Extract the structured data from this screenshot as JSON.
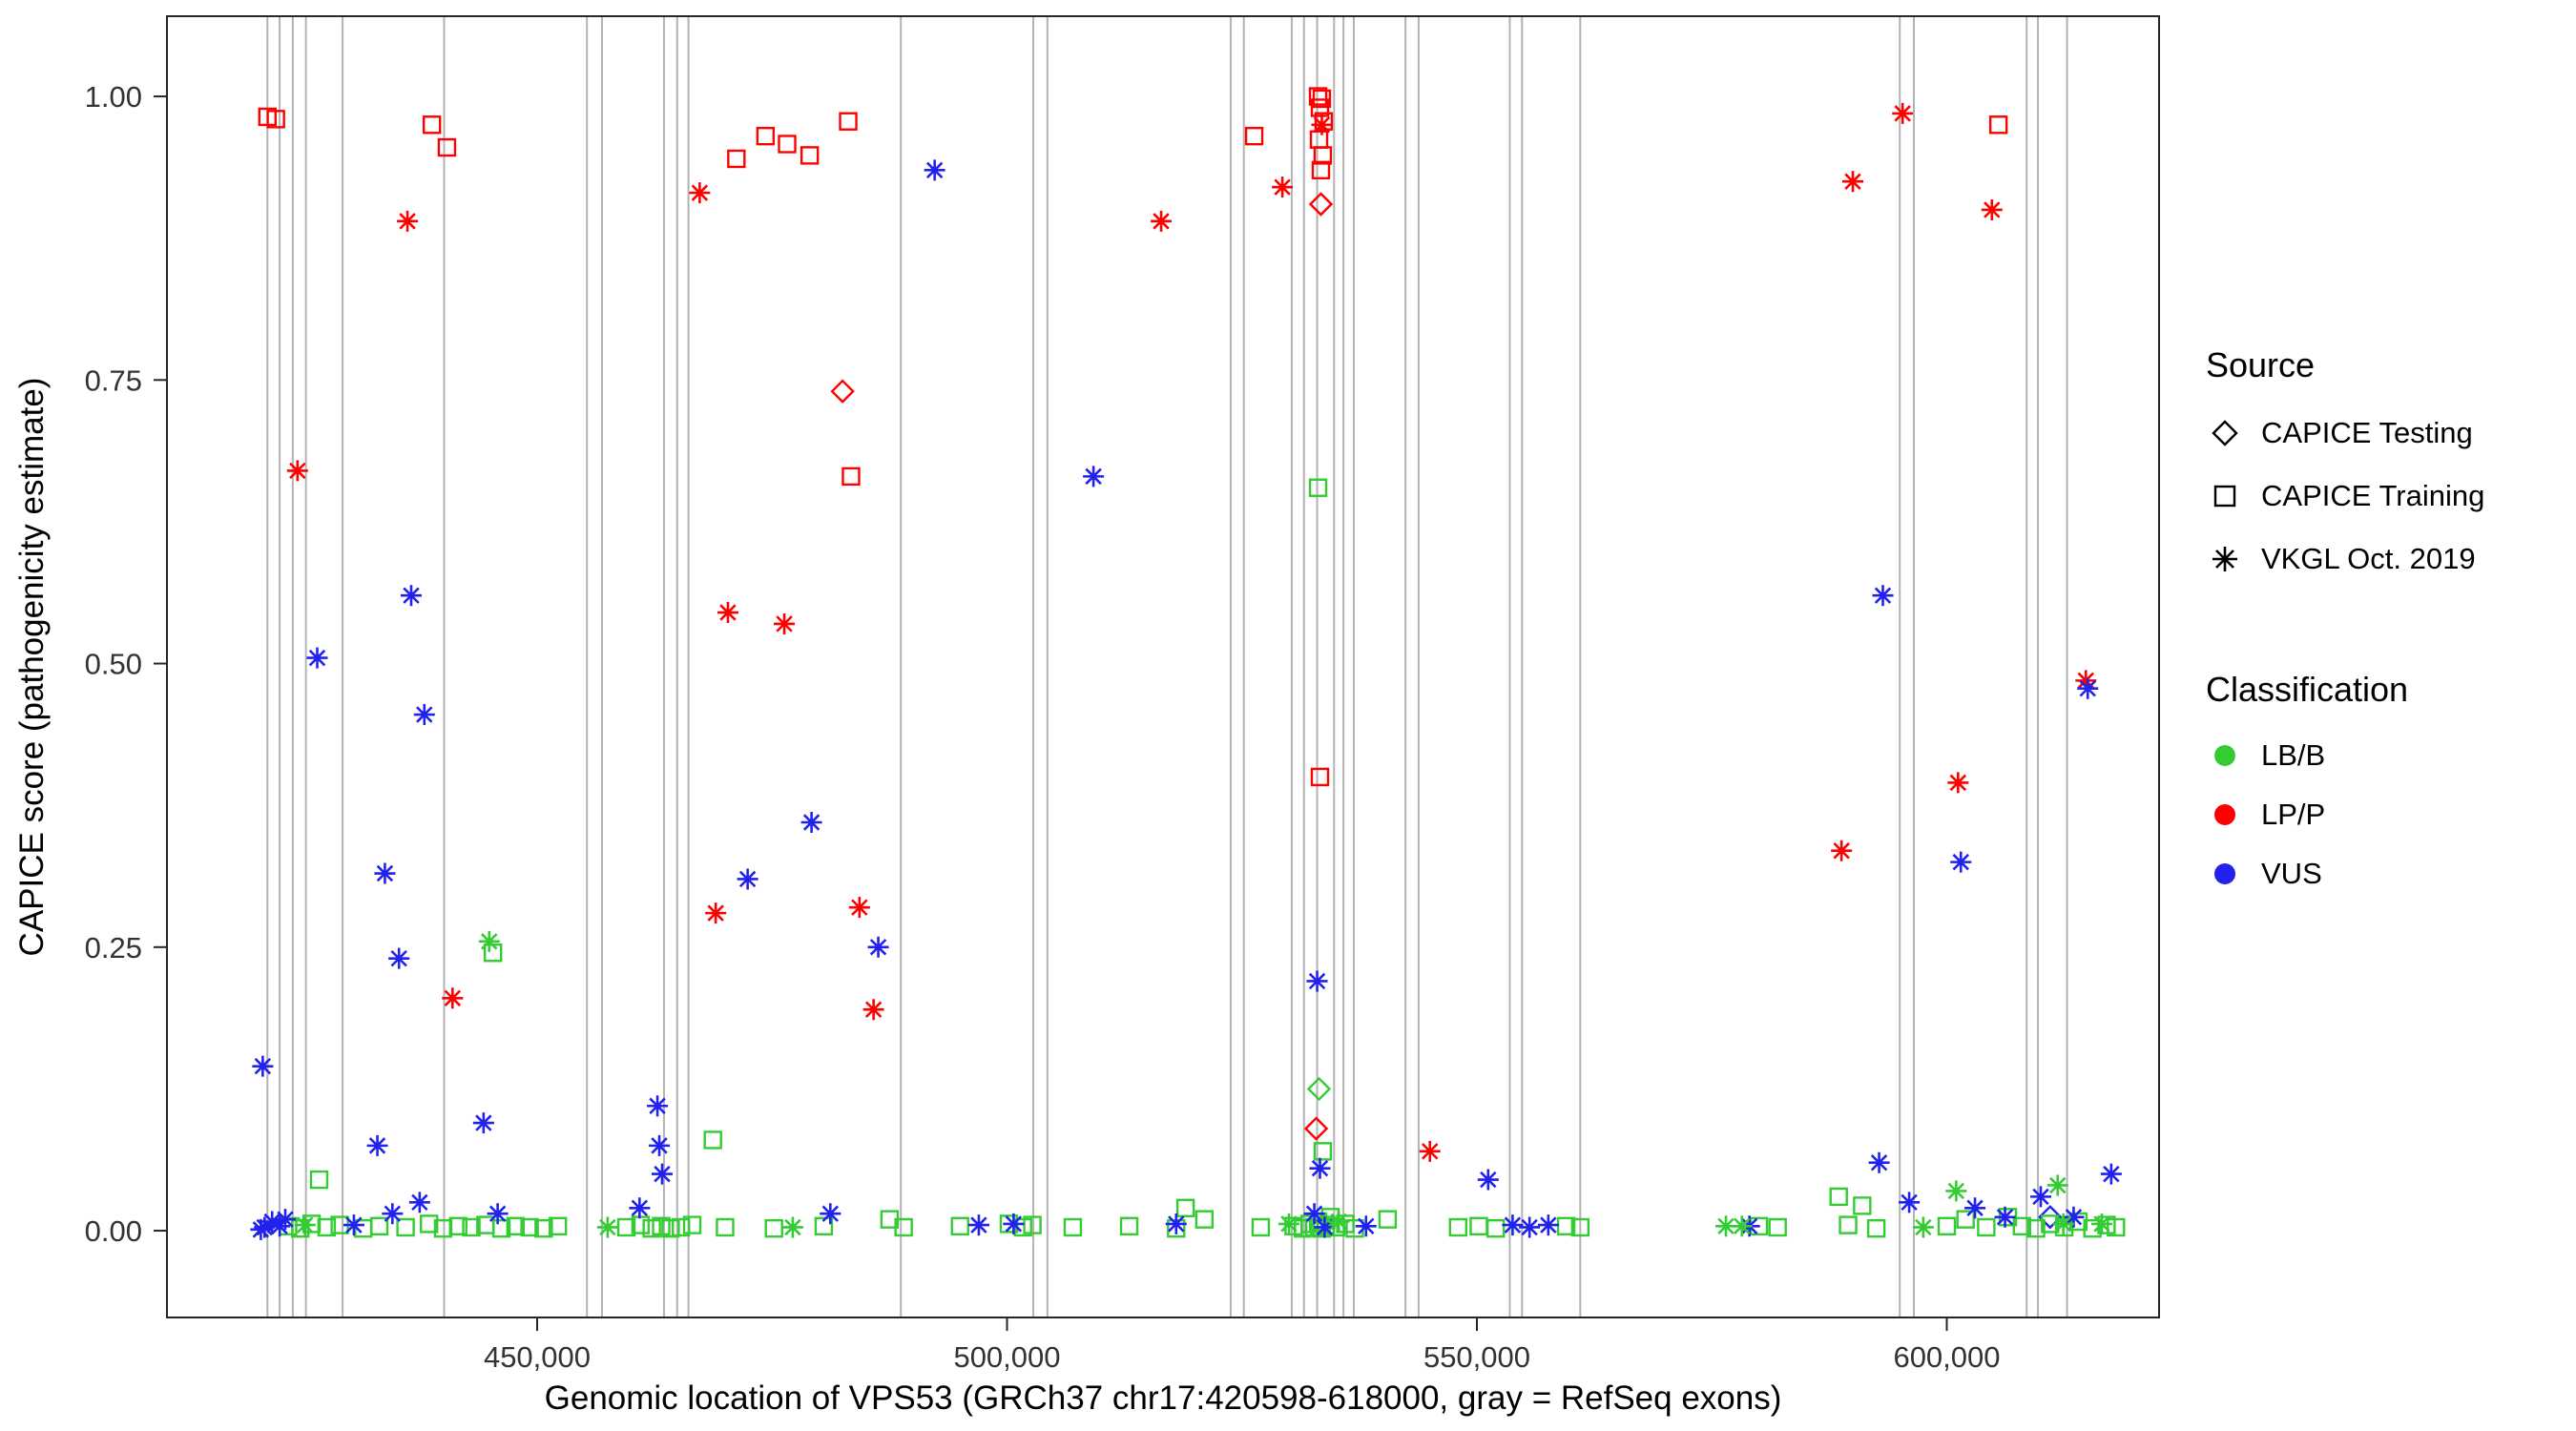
{
  "legend": {
    "source_title": "Source",
    "source_items": [
      {
        "label": "CAPICE Testing",
        "shape": "diamond"
      },
      {
        "label": "CAPICE Training",
        "shape": "square"
      },
      {
        "label": "VKGL Oct. 2019",
        "shape": "asterisk"
      }
    ],
    "classification_title": "Classification",
    "classification_items": [
      {
        "label": "LB/B",
        "color": "#33CC33"
      },
      {
        "label": "LP/P",
        "color": "#FF0000"
      },
      {
        "label": "VUS",
        "color": "#2222EE"
      }
    ]
  },
  "chart_data": {
    "type": "scatter",
    "title": "",
    "xlabel": "Genomic location of VPS53 (GRCh37 chr17:420598-618000, gray = RefSeq exons)",
    "ylabel": "CAPICE score (pathogenicity estimate)",
    "xlim": [
      410610,
      622590
    ],
    "ylim": [
      -0.0765,
      1.0707
    ],
    "grid": "off",
    "legend_position": "right",
    "xticks": [
      {
        "v": 450000,
        "label": "450,000"
      },
      {
        "v": 500000,
        "label": "500,000"
      },
      {
        "v": 550000,
        "label": "550,000"
      },
      {
        "v": 600000,
        "label": "600,000"
      }
    ],
    "yticks": [
      {
        "v": 0.0,
        "label": "0.00"
      },
      {
        "v": 0.25,
        "label": "0.25"
      },
      {
        "v": 0.5,
        "label": "0.50"
      },
      {
        "v": 0.75,
        "label": "0.75"
      },
      {
        "v": 1.0,
        "label": "1.00"
      }
    ],
    "exon_line_color": "#B3B3B3",
    "exon_lines_x": [
      421300,
      422600,
      424000,
      425400,
      429300,
      440100,
      455300,
      456900,
      463500,
      464900,
      466100,
      488700,
      502800,
      504300,
      523800,
      525200,
      530300,
      531600,
      533000,
      534800,
      535800,
      536900,
      542400,
      543800,
      553500,
      554800,
      561000,
      595000,
      596500,
      608500,
      609700,
      612800
    ],
    "classification_colors": {
      "LB/B": "#33CC33",
      "LP/P": "#FF0000",
      "VUS": "#2222EE"
    },
    "series": [
      {
        "name": "CAPICE Testing",
        "shape": "diamond",
        "points": [
          [
            482500,
            0.74,
            "LP/P"
          ],
          [
            533400,
            0.905,
            "LP/P"
          ],
          [
            533200,
            0.125,
            "LB/B"
          ],
          [
            532900,
            0.09,
            "LP/P"
          ],
          [
            533600,
            0.005,
            "LB/B"
          ],
          [
            611000,
            0.012,
            "VUS"
          ]
        ]
      },
      {
        "name": "CAPICE Training",
        "shape": "square",
        "points": [
          [
            421300,
            0.982,
            "LP/P"
          ],
          [
            422200,
            0.98,
            "LP/P"
          ],
          [
            438800,
            0.975,
            "LP/P"
          ],
          [
            440400,
            0.955,
            "LP/P"
          ],
          [
            471200,
            0.945,
            "LP/P"
          ],
          [
            474300,
            0.965,
            "LP/P"
          ],
          [
            476600,
            0.958,
            "LP/P"
          ],
          [
            479000,
            0.948,
            "LP/P"
          ],
          [
            483100,
            0.978,
            "LP/P"
          ],
          [
            483400,
            0.665,
            "LP/P"
          ],
          [
            526300,
            0.965,
            "LP/P"
          ],
          [
            533100,
            1.0,
            "LP/P"
          ],
          [
            533500,
            0.998,
            "LP/P"
          ],
          [
            533300,
            0.99,
            "LP/P"
          ],
          [
            533700,
            0.978,
            "LP/P"
          ],
          [
            533200,
            0.962,
            "LP/P"
          ],
          [
            533600,
            0.948,
            "LP/P"
          ],
          [
            533400,
            0.935,
            "LP/P"
          ],
          [
            533300,
            0.4,
            "LP/P"
          ],
          [
            605500,
            0.975,
            "LP/P"
          ],
          [
            426800,
            0.045,
            "LB/B"
          ],
          [
            445300,
            0.245,
            "LB/B"
          ],
          [
            468700,
            0.08,
            "LB/B"
          ],
          [
            519000,
            0.02,
            "LB/B"
          ],
          [
            533100,
            0.655,
            "LB/B"
          ],
          [
            533600,
            0.07,
            "LB/B"
          ],
          [
            588500,
            0.03,
            "LB/B"
          ],
          [
            591000,
            0.022,
            "LB/B"
          ],
          [
            423500,
            0.004,
            "LB/B"
          ],
          [
            424800,
            0.002,
            "LB/B"
          ],
          [
            426000,
            0.006,
            "LB/B"
          ],
          [
            427600,
            0.003,
            "LB/B"
          ],
          [
            429000,
            0.005,
            "LB/B"
          ],
          [
            431500,
            0.002,
            "LB/B"
          ],
          [
            433200,
            0.004,
            "LB/B"
          ],
          [
            436000,
            0.003,
            "LB/B"
          ],
          [
            438500,
            0.006,
            "LB/B"
          ],
          [
            440000,
            0.002,
            "LB/B"
          ],
          [
            441600,
            0.004,
            "LB/B"
          ],
          [
            443000,
            0.003,
            "LB/B"
          ],
          [
            444500,
            0.005,
            "LB/B"
          ],
          [
            446200,
            0.002,
            "LB/B"
          ],
          [
            447700,
            0.004,
            "LB/B"
          ],
          [
            449200,
            0.003,
            "LB/B"
          ],
          [
            450700,
            0.002,
            "LB/B"
          ],
          [
            452200,
            0.004,
            "LB/B"
          ],
          [
            459500,
            0.003,
            "LB/B"
          ],
          [
            461000,
            0.005,
            "LB/B"
          ],
          [
            462200,
            0.002,
            "LB/B"
          ],
          [
            463200,
            0.004,
            "LB/B"
          ],
          [
            464200,
            0.002,
            "LB/B"
          ],
          [
            465300,
            0.003,
            "LB/B"
          ],
          [
            466500,
            0.005,
            "LB/B"
          ],
          [
            470000,
            0.003,
            "LB/B"
          ],
          [
            475200,
            0.002,
            "LB/B"
          ],
          [
            480500,
            0.004,
            "LB/B"
          ],
          [
            487500,
            0.01,
            "LB/B"
          ],
          [
            489000,
            0.003,
            "LB/B"
          ],
          [
            495000,
            0.004,
            "LB/B"
          ],
          [
            500200,
            0.006,
            "LB/B"
          ],
          [
            501700,
            0.003,
            "LB/B"
          ],
          [
            502700,
            0.005,
            "LB/B"
          ],
          [
            507000,
            0.003,
            "LB/B"
          ],
          [
            513000,
            0.004,
            "LB/B"
          ],
          [
            518000,
            0.002,
            "LB/B"
          ],
          [
            521000,
            0.01,
            "LB/B"
          ],
          [
            527000,
            0.003,
            "LB/B"
          ],
          [
            530500,
            0.004,
            "LB/B"
          ],
          [
            531500,
            0.002,
            "LB/B"
          ],
          [
            532200,
            0.006,
            "LB/B"
          ],
          [
            532700,
            0.003,
            "LB/B"
          ],
          [
            533100,
            0.008,
            "LB/B"
          ],
          [
            533500,
            0.002,
            "LB/B"
          ],
          [
            533900,
            0.005,
            "LB/B"
          ],
          [
            534400,
            0.012,
            "LB/B"
          ],
          [
            535000,
            0.003,
            "LB/B"
          ],
          [
            536000,
            0.006,
            "LB/B"
          ],
          [
            537000,
            0.002,
            "LB/B"
          ],
          [
            540500,
            0.01,
            "LB/B"
          ],
          [
            548000,
            0.003,
            "LB/B"
          ],
          [
            550200,
            0.004,
            "LB/B"
          ],
          [
            552000,
            0.002,
            "LB/B"
          ],
          [
            559500,
            0.004,
            "LB/B"
          ],
          [
            561000,
            0.003,
            "LB/B"
          ],
          [
            580000,
            0.004,
            "LB/B"
          ],
          [
            582000,
            0.003,
            "LB/B"
          ],
          [
            589500,
            0.005,
            "LB/B"
          ],
          [
            592500,
            0.002,
            "LB/B"
          ],
          [
            600000,
            0.004,
            "LB/B"
          ],
          [
            602000,
            0.01,
            "LB/B"
          ],
          [
            604200,
            0.003,
            "LB/B"
          ],
          [
            606500,
            0.012,
            "LB/B"
          ],
          [
            608000,
            0.004,
            "LB/B"
          ],
          [
            609500,
            0.002,
            "LB/B"
          ],
          [
            611000,
            0.006,
            "LB/B"
          ],
          [
            612500,
            0.003,
            "LB/B"
          ],
          [
            614000,
            0.008,
            "LB/B"
          ],
          [
            615500,
            0.002,
            "LB/B"
          ],
          [
            617000,
            0.005,
            "LB/B"
          ],
          [
            618000,
            0.003,
            "LB/B"
          ]
        ]
      },
      {
        "name": "VKGL Oct. 2019",
        "shape": "asterisk",
        "points": [
          [
            424500,
            0.67,
            "LP/P"
          ],
          [
            436200,
            0.89,
            "LP/P"
          ],
          [
            441000,
            0.205,
            "LP/P"
          ],
          [
            467300,
            0.915,
            "LP/P"
          ],
          [
            470300,
            0.545,
            "LP/P"
          ],
          [
            469000,
            0.28,
            "LP/P"
          ],
          [
            476300,
            0.535,
            "LP/P"
          ],
          [
            484300,
            0.285,
            "LP/P"
          ],
          [
            485800,
            0.195,
            "LP/P"
          ],
          [
            516400,
            0.89,
            "LP/P"
          ],
          [
            529300,
            0.92,
            "LP/P"
          ],
          [
            533500,
            0.975,
            "LP/P"
          ],
          [
            545000,
            0.07,
            "LP/P"
          ],
          [
            590000,
            0.925,
            "LP/P"
          ],
          [
            595300,
            0.985,
            "LP/P"
          ],
          [
            604800,
            0.9,
            "LP/P"
          ],
          [
            588800,
            0.335,
            "LP/P"
          ],
          [
            601200,
            0.395,
            "LP/P"
          ],
          [
            614800,
            0.485,
            "LP/P"
          ],
          [
            420800,
            0.145,
            "VUS"
          ],
          [
            426600,
            0.505,
            "VUS"
          ],
          [
            433800,
            0.315,
            "VUS"
          ],
          [
            436600,
            0.56,
            "VUS"
          ],
          [
            438000,
            0.455,
            "VUS"
          ],
          [
            435300,
            0.24,
            "VUS"
          ],
          [
            433000,
            0.075,
            "VUS"
          ],
          [
            434600,
            0.015,
            "VUS"
          ],
          [
            437500,
            0.025,
            "VUS"
          ],
          [
            444300,
            0.095,
            "VUS"
          ],
          [
            445800,
            0.015,
            "VUS"
          ],
          [
            460900,
            0.02,
            "VUS"
          ],
          [
            462800,
            0.11,
            "VUS"
          ],
          [
            463000,
            0.075,
            "VUS"
          ],
          [
            463300,
            0.05,
            "VUS"
          ],
          [
            472400,
            0.31,
            "VUS"
          ],
          [
            479200,
            0.36,
            "VUS"
          ],
          [
            486300,
            0.25,
            "VUS"
          ],
          [
            481200,
            0.015,
            "VUS"
          ],
          [
            492300,
            0.935,
            "VUS"
          ],
          [
            497000,
            0.005,
            "VUS"
          ],
          [
            509200,
            0.665,
            "VUS"
          ],
          [
            518000,
            0.006,
            "VUS"
          ],
          [
            533000,
            0.22,
            "VUS"
          ],
          [
            533300,
            0.055,
            "VUS"
          ],
          [
            532700,
            0.015,
            "VUS"
          ],
          [
            538200,
            0.004,
            "VUS"
          ],
          [
            551200,
            0.045,
            "VUS"
          ],
          [
            553800,
            0.005,
            "VUS"
          ],
          [
            555600,
            0.003,
            "VUS"
          ],
          [
            557600,
            0.005,
            "VUS"
          ],
          [
            579000,
            0.004,
            "VUS"
          ],
          [
            593200,
            0.56,
            "VUS"
          ],
          [
            592800,
            0.06,
            "VUS"
          ],
          [
            601500,
            0.325,
            "VUS"
          ],
          [
            596000,
            0.025,
            "VUS"
          ],
          [
            603000,
            0.02,
            "VUS"
          ],
          [
            606200,
            0.012,
            "VUS"
          ],
          [
            610000,
            0.03,
            "VUS"
          ],
          [
            613500,
            0.012,
            "VUS"
          ],
          [
            617500,
            0.05,
            "VUS"
          ],
          [
            615000,
            0.478,
            "VUS"
          ],
          [
            421000,
            0.003,
            "VUS"
          ],
          [
            421800,
            0.008,
            "VUS"
          ],
          [
            422600,
            0.004,
            "VUS"
          ],
          [
            423200,
            0.01,
            "VUS"
          ],
          [
            430500,
            0.005,
            "VUS"
          ],
          [
            500700,
            0.006,
            "VUS"
          ],
          [
            533800,
            0.003,
            "VUS"
          ],
          [
            420600,
            0.001,
            "VUS"
          ],
          [
            425300,
            0.005,
            "LB/B"
          ],
          [
            444900,
            0.255,
            "LB/B"
          ],
          [
            457500,
            0.003,
            "LB/B"
          ],
          [
            477200,
            0.003,
            "LB/B"
          ],
          [
            530000,
            0.006,
            "LB/B"
          ],
          [
            535300,
            0.008,
            "LB/B"
          ],
          [
            576500,
            0.004,
            "LB/B"
          ],
          [
            578200,
            0.004,
            "LB/B"
          ],
          [
            601000,
            0.035,
            "LB/B"
          ],
          [
            611800,
            0.04,
            "LB/B"
          ],
          [
            612400,
            0.006,
            "LB/B"
          ],
          [
            616500,
            0.006,
            "LB/B"
          ],
          [
            597500,
            0.003,
            "LB/B"
          ]
        ]
      }
    ]
  }
}
